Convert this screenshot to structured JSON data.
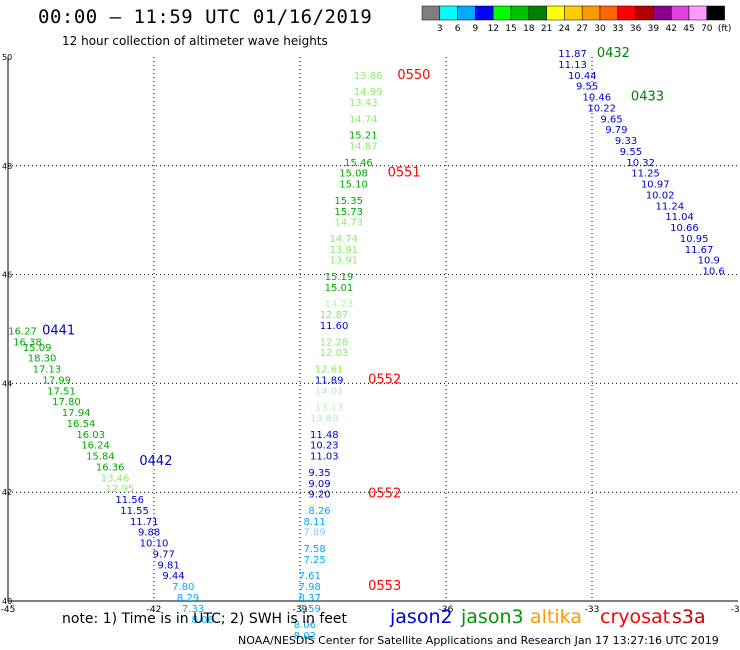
{
  "header": {
    "title": "00:00 – 11:59 UTC 01/16/2019",
    "subtitle": "12 hour collection of altimeter wave heights"
  },
  "colorbar": {
    "labels": [
      "3",
      "6",
      "9",
      "12",
      "15",
      "18",
      "21",
      "24",
      "27",
      "30",
      "33",
      "36",
      "39",
      "42",
      "45",
      "70",
      "(ft)"
    ],
    "colors": [
      "#7f7f7f",
      "#00ffff",
      "#00aaff",
      "#0000ff",
      "#00ff00",
      "#00c000",
      "#008000",
      "#ffff00",
      "#ffcc00",
      "#ff9900",
      "#ff6600",
      "#ff0000",
      "#b00000",
      "#8b008b",
      "#dd44dd",
      "#ff99ff",
      "#000000"
    ]
  },
  "footer": {
    "note": "note:  1) Time is in UTC;  2) SWH is in feet",
    "credit": "NOAA/NESDIS Center for Satellite Applications and Research     Jan 17 13:27:16 UTC 2019",
    "satellites": [
      {
        "name": "jason2",
        "color": "#0000cc"
      },
      {
        "name": "jason3",
        "color": "#009900"
      },
      {
        "name": "altika",
        "color": "#ff9900"
      },
      {
        "name": "cryosat",
        "color": "#ff0000"
      },
      {
        "name": "s3a",
        "color": "#cc0000"
      }
    ]
  },
  "chart_data": {
    "type": "scatter",
    "title": "00:00 – 11:59 UTC 01/16/2019",
    "subtitle": "12 hour collection of altimeter wave heights",
    "xlim": [
      -45,
      -30
    ],
    "ylim": [
      40,
      50
    ],
    "xticks": [
      "-45",
      "-42",
      "-39",
      "-36",
      "-33",
      "-30"
    ],
    "yticks": [
      "50",
      "48",
      "46",
      "44",
      "42",
      "40"
    ],
    "grid": true,
    "points": [
      {
        "lon": -37.6,
        "lat": 49.6,
        "v": "13.86",
        "c": "#88ee66"
      },
      {
        "lon": -37.6,
        "lat": 49.3,
        "v": "14.99",
        "c": "#88ee66"
      },
      {
        "lon": -37.7,
        "lat": 49.1,
        "v": "13.43",
        "c": "#88ee66"
      },
      {
        "lon": -37.7,
        "lat": 48.8,
        "v": "14.74",
        "c": "#88ee66"
      },
      {
        "lon": -37.7,
        "lat": 48.5,
        "v": "15.21",
        "c": "#00aa00"
      },
      {
        "lon": -37.7,
        "lat": 48.3,
        "v": "14.87",
        "c": "#88ee66"
      },
      {
        "lon": -37.8,
        "lat": 48.0,
        "v": "15.46",
        "c": "#00aa00"
      },
      {
        "lon": -37.9,
        "lat": 47.8,
        "v": "15.08",
        "c": "#00aa00"
      },
      {
        "lon": -37.9,
        "lat": 47.6,
        "v": "15.10",
        "c": "#00aa00"
      },
      {
        "lon": -38.0,
        "lat": 47.3,
        "v": "15.35",
        "c": "#00aa00"
      },
      {
        "lon": -38.0,
        "lat": 47.1,
        "v": "15.73",
        "c": "#00aa00"
      },
      {
        "lon": -38.0,
        "lat": 46.9,
        "v": "14.73",
        "c": "#88ee66"
      },
      {
        "lon": -38.1,
        "lat": 46.6,
        "v": "14.74",
        "c": "#88ee66"
      },
      {
        "lon": -38.1,
        "lat": 46.4,
        "v": "13.91",
        "c": "#88ee66"
      },
      {
        "lon": -38.1,
        "lat": 46.2,
        "v": "13.91",
        "c": "#88ee66"
      },
      {
        "lon": -38.2,
        "lat": 45.9,
        "v": "15.19",
        "c": "#00aa00"
      },
      {
        "lon": -38.2,
        "lat": 45.7,
        "v": "15.01",
        "c": "#00aa00"
      },
      {
        "lon": -38.2,
        "lat": 45.4,
        "v": "14.23",
        "c": "#bbeebb"
      },
      {
        "lon": -38.3,
        "lat": 45.2,
        "v": "12.87",
        "c": "#88ee66"
      },
      {
        "lon": -38.3,
        "lat": 45.0,
        "v": "11.60",
        "c": "#0000cc"
      },
      {
        "lon": -38.3,
        "lat": 44.7,
        "v": "12.28",
        "c": "#88ee66"
      },
      {
        "lon": -38.3,
        "lat": 44.5,
        "v": "12.03",
        "c": "#88ee66"
      },
      {
        "lon": -38.4,
        "lat": 44.2,
        "v": "12.61",
        "c": "#88ee66"
      },
      {
        "lon": -38.4,
        "lat": 44.0,
        "v": "11.89",
        "c": "#0000cc"
      },
      {
        "lon": -38.4,
        "lat": 43.8,
        "v": "14.01",
        "c": "#bbeebb"
      },
      {
        "lon": -38.4,
        "lat": 43.5,
        "v": "13.13",
        "c": "#bbeebb"
      },
      {
        "lon": -38.5,
        "lat": 43.3,
        "v": "13.89",
        "c": "#bbeebb"
      },
      {
        "lon": -38.5,
        "lat": 43.0,
        "v": "11.48",
        "c": "#0000cc"
      },
      {
        "lon": -38.5,
        "lat": 42.8,
        "v": "10.23",
        "c": "#0000cc"
      },
      {
        "lon": -38.5,
        "lat": 42.6,
        "v": "11.03",
        "c": "#0000cc"
      },
      {
        "lon": -38.6,
        "lat": 42.3,
        "v": "9.35",
        "c": "#0000cc"
      },
      {
        "lon": -38.6,
        "lat": 42.1,
        "v": "9.09",
        "c": "#0000cc"
      },
      {
        "lon": -38.6,
        "lat": 41.9,
        "v": "9.20",
        "c": "#0000cc"
      },
      {
        "lon": -38.6,
        "lat": 41.6,
        "v": "8.26",
        "c": "#00aaff"
      },
      {
        "lon": -38.7,
        "lat": 41.4,
        "v": "8.11",
        "c": "#00aaff"
      },
      {
        "lon": -38.7,
        "lat": 41.2,
        "v": "7.89",
        "c": "#88ccff"
      },
      {
        "lon": -38.7,
        "lat": 40.9,
        "v": "7.58",
        "c": "#00aaff"
      },
      {
        "lon": -38.7,
        "lat": 40.7,
        "v": "7.25",
        "c": "#00aaff"
      },
      {
        "lon": -38.8,
        "lat": 40.4,
        "v": "7.61",
        "c": "#00aaff"
      },
      {
        "lon": -38.8,
        "lat": 40.2,
        "v": "7.98",
        "c": "#00aaff"
      },
      {
        "lon": -38.8,
        "lat": 40.0,
        "v": "8.37",
        "c": "#00aaff"
      },
      {
        "lon": -38.8,
        "lat": 39.8,
        "v": "7.59",
        "c": "#00aaff"
      },
      {
        "lon": -38.9,
        "lat": 39.5,
        "v": "8.06",
        "c": "#00aaff"
      },
      {
        "lon": -38.9,
        "lat": 39.3,
        "v": "8.02",
        "c": "#00aaff"
      },
      {
        "lon": -44.7,
        "lat": 44.9,
        "v": "16.27",
        "c": "#00aa00"
      },
      {
        "lon": -44.6,
        "lat": 44.7,
        "v": "16.38",
        "c": "#00aa00"
      },
      {
        "lon": -44.4,
        "lat": 44.6,
        "v": "15.09",
        "c": "#00aa00"
      },
      {
        "lon": -44.3,
        "lat": 44.4,
        "v": "18.30",
        "c": "#00aa00"
      },
      {
        "lon": -44.2,
        "lat": 44.2,
        "v": "17.13",
        "c": "#00aa00"
      },
      {
        "lon": -44.0,
        "lat": 44.0,
        "v": "17.99",
        "c": "#00aa00"
      },
      {
        "lon": -43.9,
        "lat": 43.8,
        "v": "17.51",
        "c": "#00aa00"
      },
      {
        "lon": -43.8,
        "lat": 43.6,
        "v": "17.80",
        "c": "#00aa00"
      },
      {
        "lon": -43.6,
        "lat": 43.4,
        "v": "17.94",
        "c": "#00aa00"
      },
      {
        "lon": -43.5,
        "lat": 43.2,
        "v": "16.54",
        "c": "#00aa00"
      },
      {
        "lon": -43.3,
        "lat": 43.0,
        "v": "16.03",
        "c": "#00aa00"
      },
      {
        "lon": -43.2,
        "lat": 42.8,
        "v": "16.24",
        "c": "#00aa00"
      },
      {
        "lon": -43.1,
        "lat": 42.6,
        "v": "15.84",
        "c": "#00aa00"
      },
      {
        "lon": -42.9,
        "lat": 42.4,
        "v": "16.36",
        "c": "#00aa00"
      },
      {
        "lon": -42.8,
        "lat": 42.2,
        "v": "13.46",
        "c": "#88ee66"
      },
      {
        "lon": -42.7,
        "lat": 42.0,
        "v": "12.95",
        "c": "#88ee66"
      },
      {
        "lon": -42.5,
        "lat": 41.8,
        "v": "11.56",
        "c": "#0000cc"
      },
      {
        "lon": -42.4,
        "lat": 41.6,
        "v": "11.55",
        "c": "#0000cc"
      },
      {
        "lon": -42.2,
        "lat": 41.4,
        "v": "11.71",
        "c": "#0000cc"
      },
      {
        "lon": -42.1,
        "lat": 41.2,
        "v": "9.88",
        "c": "#0000cc"
      },
      {
        "lon": -42.0,
        "lat": 41.0,
        "v": "10.10",
        "c": "#0000cc"
      },
      {
        "lon": -41.8,
        "lat": 40.8,
        "v": "9.77",
        "c": "#0000cc"
      },
      {
        "lon": -41.7,
        "lat": 40.6,
        "v": "9.81",
        "c": "#0000cc"
      },
      {
        "lon": -41.6,
        "lat": 40.4,
        "v": "9.44",
        "c": "#0000cc"
      },
      {
        "lon": -41.4,
        "lat": 40.2,
        "v": "7.80",
        "c": "#00aaff"
      },
      {
        "lon": -41.3,
        "lat": 40.0,
        "v": "8.29",
        "c": "#00aaff"
      },
      {
        "lon": -41.2,
        "lat": 39.8,
        "v": "7.33",
        "c": "#00aaff"
      },
      {
        "lon": -41.0,
        "lat": 39.6,
        "v": "8.06",
        "c": "#00aaff"
      },
      {
        "lon": -33.4,
        "lat": 50.0,
        "v": "11.87",
        "c": "#0000cc"
      },
      {
        "lon": -33.4,
        "lat": 49.8,
        "v": "11.13",
        "c": "#0000cc"
      },
      {
        "lon": -33.2,
        "lat": 49.6,
        "v": "10.44",
        "c": "#0000cc"
      },
      {
        "lon": -33.1,
        "lat": 49.4,
        "v": "9.55",
        "c": "#0000cc"
      },
      {
        "lon": -32.9,
        "lat": 49.2,
        "v": "10.46",
        "c": "#0000cc"
      },
      {
        "lon": -32.8,
        "lat": 49.0,
        "v": "10.22",
        "c": "#0000cc"
      },
      {
        "lon": -32.6,
        "lat": 48.8,
        "v": "9.65",
        "c": "#0000cc"
      },
      {
        "lon": -32.5,
        "lat": 48.6,
        "v": "9.79",
        "c": "#0000cc"
      },
      {
        "lon": -32.3,
        "lat": 48.4,
        "v": "9.33",
        "c": "#0000cc"
      },
      {
        "lon": -32.2,
        "lat": 48.2,
        "v": "9.55",
        "c": "#0000cc"
      },
      {
        "lon": -32.0,
        "lat": 48.0,
        "v": "10.32",
        "c": "#0000cc"
      },
      {
        "lon": -31.9,
        "lat": 47.8,
        "v": "11.25",
        "c": "#0000cc"
      },
      {
        "lon": -31.7,
        "lat": 47.6,
        "v": "10.97",
        "c": "#0000cc"
      },
      {
        "lon": -31.6,
        "lat": 47.4,
        "v": "10.02",
        "c": "#0000cc"
      },
      {
        "lon": -31.4,
        "lat": 47.2,
        "v": "11.24",
        "c": "#0000cc"
      },
      {
        "lon": -31.2,
        "lat": 47.0,
        "v": "11.04",
        "c": "#0000cc"
      },
      {
        "lon": -31.1,
        "lat": 46.8,
        "v": "10.66",
        "c": "#0000cc"
      },
      {
        "lon": -30.9,
        "lat": 46.6,
        "v": "10.95",
        "c": "#0000cc"
      },
      {
        "lon": -30.8,
        "lat": 46.4,
        "v": "11.67",
        "c": "#0000cc"
      },
      {
        "lon": -30.6,
        "lat": 46.2,
        "v": "10.9",
        "c": "#0000cc"
      },
      {
        "lon": -30.5,
        "lat": 46.0,
        "v": "10.6",
        "c": "#0000cc"
      }
    ],
    "time_labels": [
      {
        "lon": -37.0,
        "lat": 49.6,
        "t": "0550",
        "c": "#ff0000"
      },
      {
        "lon": -37.2,
        "lat": 47.8,
        "t": "0551",
        "c": "#ff0000"
      },
      {
        "lon": -37.6,
        "lat": 44.0,
        "t": "0552",
        "c": "#ff0000"
      },
      {
        "lon": -37.6,
        "lat": 41.9,
        "t": "0552",
        "c": "#ff0000"
      },
      {
        "lon": -37.6,
        "lat": 40.2,
        "t": "0553",
        "c": "#ff0000"
      },
      {
        "lon": -44.3,
        "lat": 44.9,
        "t": "0441",
        "c": "#0000cc"
      },
      {
        "lon": -42.3,
        "lat": 42.5,
        "t": "0442",
        "c": "#0000cc"
      },
      {
        "lon": -32.9,
        "lat": 50.0,
        "t": "0432",
        "c": "#008000"
      },
      {
        "lon": -32.2,
        "lat": 49.2,
        "t": "0433",
        "c": "#008000"
      }
    ]
  }
}
